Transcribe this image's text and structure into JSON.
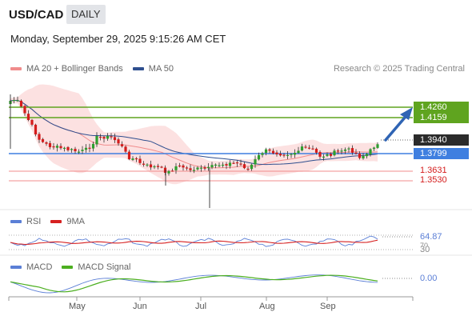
{
  "header": {
    "pair": "USD/CAD",
    "timeframe": "DAILY",
    "datetime": "Monday, September 29, 2025 9:15:26 AM CET"
  },
  "price_legend": [
    {
      "label": "MA 20 + Bollinger Bands",
      "color": "#f08c8c"
    },
    {
      "label": "MA 50",
      "color": "#2f4f8f"
    }
  ],
  "copyright": "Research © 2025 Trading Central",
  "levels": {
    "r2": "1.4260",
    "r1": "1.4159",
    "last": "1.3940",
    "pivot": "1.3799",
    "s1": "1.3631",
    "s2": "1.3530"
  },
  "rsi_panel": {
    "legend": [
      {
        "label": "RSI",
        "color": "#5b7fd6"
      },
      {
        "label": "9MA",
        "color": "#d62020"
      }
    ],
    "value": "64.87",
    "level_70": "70",
    "level_30": "30"
  },
  "macd_panel": {
    "legend": [
      {
        "label": "MACD",
        "color": "#5b7fd6"
      },
      {
        "label": "MACD Signal",
        "color": "#4caf20"
      }
    ],
    "value": "0.00"
  },
  "x_axis": [
    "May",
    "Jun",
    "Jul",
    "Aug",
    "Sep"
  ],
  "colors": {
    "up": "#2e9e2e",
    "down": "#d41c1c",
    "resistance": "#5fa41f",
    "pivot": "#3f7fe0",
    "support": "#f08c8c",
    "arrow": "#2f64b4"
  }
}
